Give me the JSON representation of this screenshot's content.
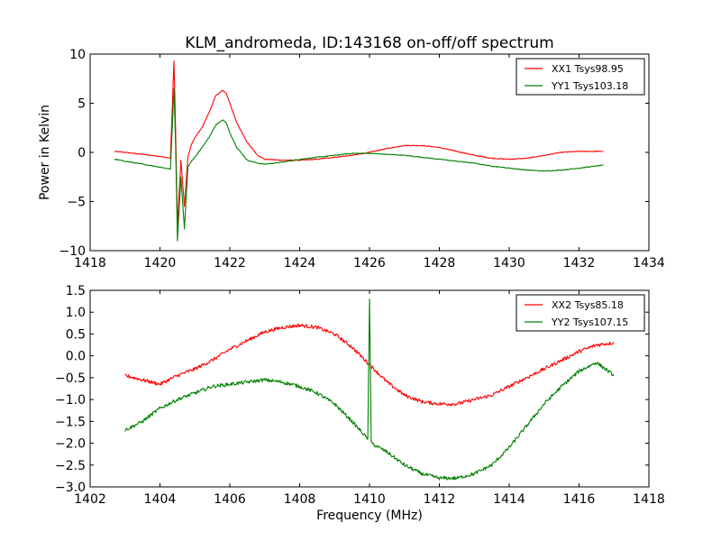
{
  "chart_data": [
    {
      "type": "line",
      "title": "KLM_andromeda, ID:143168 on-off/off spectrum",
      "xlabel": "",
      "ylabel": "Power in Kelvin",
      "xlim": [
        1418,
        1434
      ],
      "ylim": [
        -10,
        10
      ],
      "xticks": [
        1418,
        1420,
        1422,
        1424,
        1426,
        1428,
        1430,
        1432,
        1434
      ],
      "xtick_labels": [
        "1418",
        "1420",
        "1422",
        "1424",
        "1426",
        "1428",
        "1430",
        "1432",
        "1434"
      ],
      "yticks": [
        -10,
        -5,
        0,
        5,
        10
      ],
      "ytick_labels": [
        "−10",
        "−5",
        "0",
        "5",
        "10"
      ],
      "grid": false,
      "legend_position": "top-right",
      "series": [
        {
          "name": "XX1 Tsys98.95",
          "color": "#ff0000",
          "x": [
            1418.7,
            1419.0,
            1419.5,
            1420.0,
            1420.3,
            1420.4,
            1420.45,
            1420.5,
            1420.6,
            1420.7,
            1420.8,
            1420.9,
            1421.0,
            1421.2,
            1421.4,
            1421.6,
            1421.8,
            1421.9,
            1422.0,
            1422.2,
            1422.5,
            1422.8,
            1423.0,
            1423.5,
            1424.0,
            1424.5,
            1425.0,
            1425.5,
            1426.0,
            1426.5,
            1427.0,
            1427.5,
            1428.0,
            1428.5,
            1429.0,
            1429.5,
            1430.0,
            1430.5,
            1431.0,
            1431.5,
            1432.0,
            1432.7
          ],
          "values": [
            0.1,
            0.0,
            -0.2,
            -0.4,
            -0.6,
            9.3,
            2.0,
            -7.5,
            -0.8,
            -5.5,
            -0.5,
            0.8,
            1.5,
            2.5,
            4.0,
            5.8,
            6.3,
            6.0,
            5.0,
            3.0,
            1.0,
            -0.3,
            -0.7,
            -0.8,
            -0.8,
            -0.7,
            -0.5,
            -0.3,
            0.0,
            0.4,
            0.7,
            0.7,
            0.5,
            0.1,
            -0.3,
            -0.6,
            -0.7,
            -0.6,
            -0.3,
            0.0,
            0.1,
            0.1
          ]
        },
        {
          "name": "YY1 Tsys103.18",
          "color": "#008000",
          "x": [
            1418.7,
            1419.0,
            1419.5,
            1420.0,
            1420.3,
            1420.4,
            1420.45,
            1420.5,
            1420.6,
            1420.7,
            1420.8,
            1420.9,
            1421.0,
            1421.2,
            1421.4,
            1421.6,
            1421.8,
            1421.9,
            1422.0,
            1422.2,
            1422.5,
            1422.8,
            1423.0,
            1423.5,
            1424.0,
            1424.5,
            1425.0,
            1425.5,
            1426.0,
            1426.5,
            1427.0,
            1427.5,
            1428.0,
            1428.5,
            1429.0,
            1429.5,
            1430.0,
            1430.5,
            1431.0,
            1431.5,
            1432.0,
            1432.7
          ],
          "values": [
            -0.7,
            -0.9,
            -1.2,
            -1.5,
            -1.7,
            6.5,
            0.5,
            -9.0,
            -2.5,
            -7.8,
            -1.5,
            -0.9,
            -0.5,
            0.5,
            1.5,
            2.8,
            3.3,
            3.0,
            2.0,
            0.5,
            -0.8,
            -1.1,
            -1.2,
            -1.0,
            -0.7,
            -0.5,
            -0.3,
            -0.1,
            -0.1,
            -0.2,
            -0.3,
            -0.5,
            -0.7,
            -0.9,
            -1.1,
            -1.4,
            -1.6,
            -1.8,
            -1.9,
            -1.8,
            -1.6,
            -1.3
          ]
        }
      ]
    },
    {
      "type": "line",
      "title": "",
      "xlabel": "Frequency (MHz)",
      "ylabel": "",
      "xlim": [
        1402,
        1418
      ],
      "ylim": [
        -3.0,
        1.5
      ],
      "xticks": [
        1402,
        1404,
        1406,
        1408,
        1410,
        1412,
        1414,
        1416,
        1418
      ],
      "xtick_labels": [
        "1402",
        "1404",
        "1406",
        "1408",
        "1410",
        "1412",
        "1414",
        "1416",
        "1418"
      ],
      "yticks": [
        -3.0,
        -2.5,
        -2.0,
        -1.5,
        -1.0,
        -0.5,
        0.0,
        0.5,
        1.0,
        1.5
      ],
      "ytick_labels": [
        "−3.0",
        "−2.5",
        "−2.0",
        "−1.5",
        "−1.0",
        "−0.5",
        "0.0",
        "0.5",
        "1.0",
        "1.5"
      ],
      "grid": false,
      "legend_position": "top-right",
      "series": [
        {
          "name": "XX2 Tsys85.18",
          "color": "#ff0000",
          "x": [
            1403.0,
            1403.5,
            1404.0,
            1404.5,
            1405.0,
            1405.5,
            1406.0,
            1406.5,
            1407.0,
            1407.5,
            1408.0,
            1408.5,
            1409.0,
            1409.5,
            1410.0,
            1410.5,
            1411.0,
            1411.5,
            1412.0,
            1412.5,
            1413.0,
            1413.5,
            1414.0,
            1414.5,
            1415.0,
            1415.5,
            1416.0,
            1416.5,
            1417.0
          ],
          "values": [
            -0.45,
            -0.55,
            -0.65,
            -0.45,
            -0.3,
            -0.1,
            0.15,
            0.35,
            0.55,
            0.65,
            0.7,
            0.65,
            0.5,
            0.2,
            -0.2,
            -0.6,
            -0.9,
            -1.05,
            -1.1,
            -1.1,
            -1.0,
            -0.9,
            -0.7,
            -0.5,
            -0.3,
            -0.1,
            0.1,
            0.25,
            0.3
          ]
        },
        {
          "name": "YY2 Tsys107.15",
          "color": "#008000",
          "x": [
            1403.0,
            1403.5,
            1404.0,
            1404.5,
            1405.0,
            1405.5,
            1406.0,
            1406.5,
            1407.0,
            1407.5,
            1408.0,
            1408.5,
            1409.0,
            1409.5,
            1409.95,
            1410.0,
            1410.05,
            1410.5,
            1411.0,
            1411.5,
            1412.0,
            1412.5,
            1413.0,
            1413.5,
            1414.0,
            1414.5,
            1415.0,
            1415.5,
            1416.0,
            1416.5,
            1417.0
          ],
          "values": [
            -1.7,
            -1.5,
            -1.2,
            -1.0,
            -0.85,
            -0.7,
            -0.65,
            -0.6,
            -0.55,
            -0.6,
            -0.7,
            -0.85,
            -1.1,
            -1.5,
            -1.9,
            1.3,
            -2.0,
            -2.2,
            -2.5,
            -2.7,
            -2.8,
            -2.8,
            -2.7,
            -2.5,
            -2.1,
            -1.6,
            -1.1,
            -0.7,
            -0.35,
            -0.15,
            -0.45
          ]
        }
      ]
    }
  ]
}
